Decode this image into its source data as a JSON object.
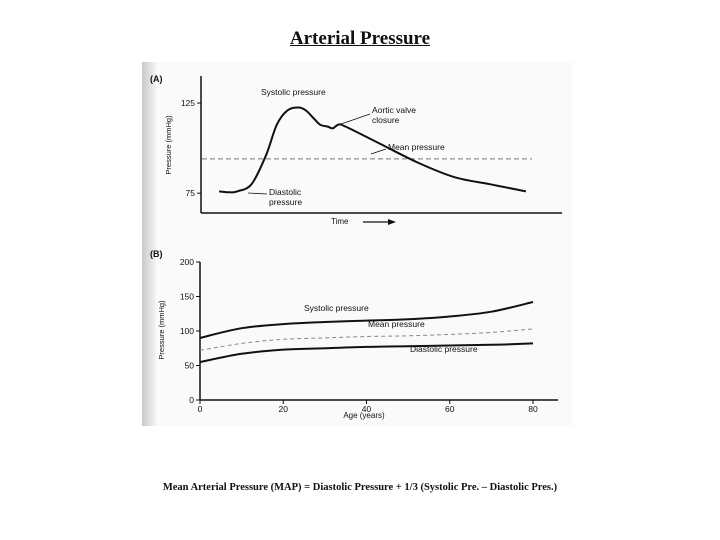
{
  "title": "Arterial Pressure",
  "formula": "Mean Arterial Pressure (MAP) = Diastolic Pressure + 1/3 (Systolic Pre. – Diastolic Pres.)",
  "chart_data": [
    {
      "panel": "(A)",
      "type": "line",
      "xlabel": "Time",
      "ylabel": "Pressure (mmHg)",
      "yticks": [
        75,
        125
      ],
      "ylim": [
        64,
        140
      ],
      "xlim": [
        0,
        100
      ],
      "series": [
        {
          "name": "",
          "x": [
            5,
            8,
            10,
            14,
            18,
            21,
            24,
            27,
            29,
            31,
            33,
            35,
            36.5,
            38,
            40,
            50,
            60,
            70,
            80,
            90
          ],
          "y": [
            76,
            75.5,
            76,
            80,
            96,
            113,
            121,
            122.5,
            121,
            117,
            113,
            112,
            111,
            113,
            112,
            102,
            92,
            84,
            80,
            76
          ]
        },
        {
          "name": "Mean pressure",
          "x": [
            0,
            100
          ],
          "y": [
            94,
            94
          ],
          "dashed": true
        }
      ],
      "annotations": {
        "systolic": "Systolic pressure",
        "aortic": [
          "Aortic valve",
          "closure"
        ],
        "mean": "Mean pressure",
        "diastolic": [
          "Diastolic",
          "pressure"
        ]
      }
    },
    {
      "panel": "(B)",
      "type": "line",
      "xlabel": "Age (years)",
      "ylabel": "Pressure (mmHg)",
      "xticks": [
        0,
        20,
        40,
        60,
        80
      ],
      "yticks": [
        0,
        50,
        100,
        150,
        200
      ],
      "xlim": [
        0,
        86
      ],
      "ylim": [
        0,
        200
      ],
      "x": [
        0,
        10,
        20,
        30,
        40,
        50,
        60,
        70,
        80
      ],
      "series": [
        {
          "name": "Systolic pressure",
          "values": [
            90,
            104,
            110,
            113,
            115,
            117,
            121,
            128,
            142
          ]
        },
        {
          "name": "Mean pressure",
          "values": [
            72,
            82,
            88,
            90,
            92,
            93,
            95,
            98,
            103
          ],
          "dashed": true
        },
        {
          "name": "Diastolic pressure",
          "values": [
            55,
            67,
            73,
            75,
            77,
            78,
            79,
            80,
            82
          ]
        }
      ]
    }
  ]
}
